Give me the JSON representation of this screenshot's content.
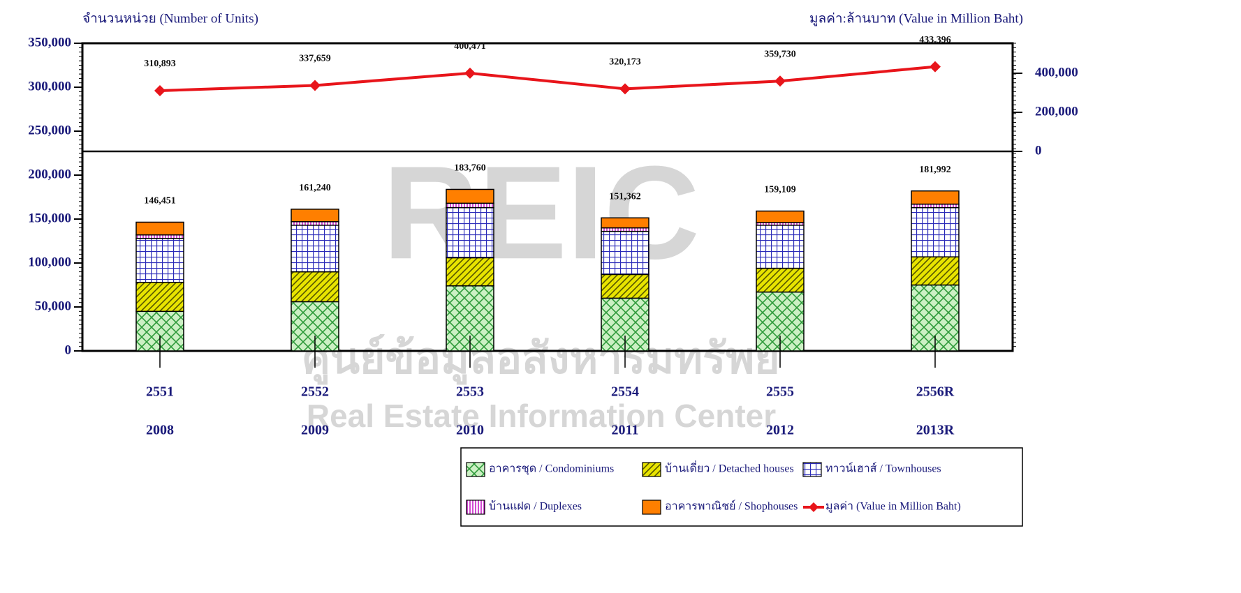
{
  "chart_data": {
    "type": "bar",
    "y_axis_label": "จำนวนหน่วย (Number of Units)",
    "y2_axis_label": "มูลค่า:ล้านบาท (Value in Million Baht)",
    "watermark": [
      "REIC",
      "ศูนย์ข้อมูลอสังหาริมทรัพย์",
      "Real Estate Information Center"
    ],
    "categories": [
      "2551",
      "2552",
      "2553",
      "2554",
      "2555",
      "2556R"
    ],
    "categories_gregorian": [
      "2008",
      "2009",
      "2010",
      "2011",
      "2012",
      "2013R"
    ],
    "stacked": true,
    "series": [
      {
        "name": "อาคารชุด / Condominiums",
        "color": "#2e9a3a",
        "pattern": "crosshatch",
        "values": [
          45000,
          56000,
          74000,
          60000,
          67000,
          75000
        ]
      },
      {
        "name": "บ้านเดี่ยว / Detached houses",
        "color": "#d4d400",
        "pattern": "diagonal",
        "values": [
          33000,
          34000,
          32000,
          27000,
          27000,
          32000
        ]
      },
      {
        "name": "ทาวน์เฮาส์ / Townhouses",
        "color": "#2a2ab8",
        "pattern": "grid",
        "values": [
          50000,
          53000,
          57000,
          49000,
          49000,
          56000
        ]
      },
      {
        "name": "บ้านแฝด / Duplexes",
        "color": "#c000c0",
        "pattern": "vertical",
        "values": [
          4000,
          4000,
          5000,
          4000,
          3000,
          4000
        ]
      },
      {
        "name": "อาคารพาณิชย์ / Shophouses",
        "color": "#ff7f00",
        "pattern": "solid",
        "values": [
          14451,
          14240,
          15760,
          11362,
          13109,
          14992
        ]
      },
      {
        "name": "มูลค่า (Value in Million Baht)",
        "color": "#e8151b",
        "type": "line",
        "axis": "y2",
        "values": [
          310893,
          337659,
          400471,
          320173,
          359730,
          433396
        ],
        "value_labels": [
          "310,893",
          "337,659",
          "400,471",
          "320,173",
          "359,730",
          "433,396"
        ]
      }
    ],
    "totals": {
      "values": [
        146451,
        161240,
        183760,
        151362,
        159109,
        181992
      ],
      "value_labels": [
        "146,451",
        "161,240",
        "183,760",
        "151,362",
        "159,109",
        "181,992"
      ]
    },
    "ylim": [
      0,
      350000
    ],
    "yticks": [
      0,
      {
        "value": 50000,
        "label": "50,000"
      },
      {
        "value": 100000,
        "label": "100,000"
      },
      {
        "value": 150000,
        "label": "150,000"
      },
      {
        "value": 200000,
        "label": "200,000"
      },
      {
        "value": 250000,
        "label": "250,000"
      },
      {
        "value": 300000,
        "label": "300,000"
      },
      {
        "value": 350000,
        "label": "350,000"
      }
    ],
    "y2lim": [
      -1021000,
      553500
    ],
    "y2ticks": [
      0,
      {
        "value": 200000,
        "label": "200,000"
      },
      {
        "value": 400000,
        "label": "400,000"
      }
    ],
    "legend": "bottom-right"
  }
}
